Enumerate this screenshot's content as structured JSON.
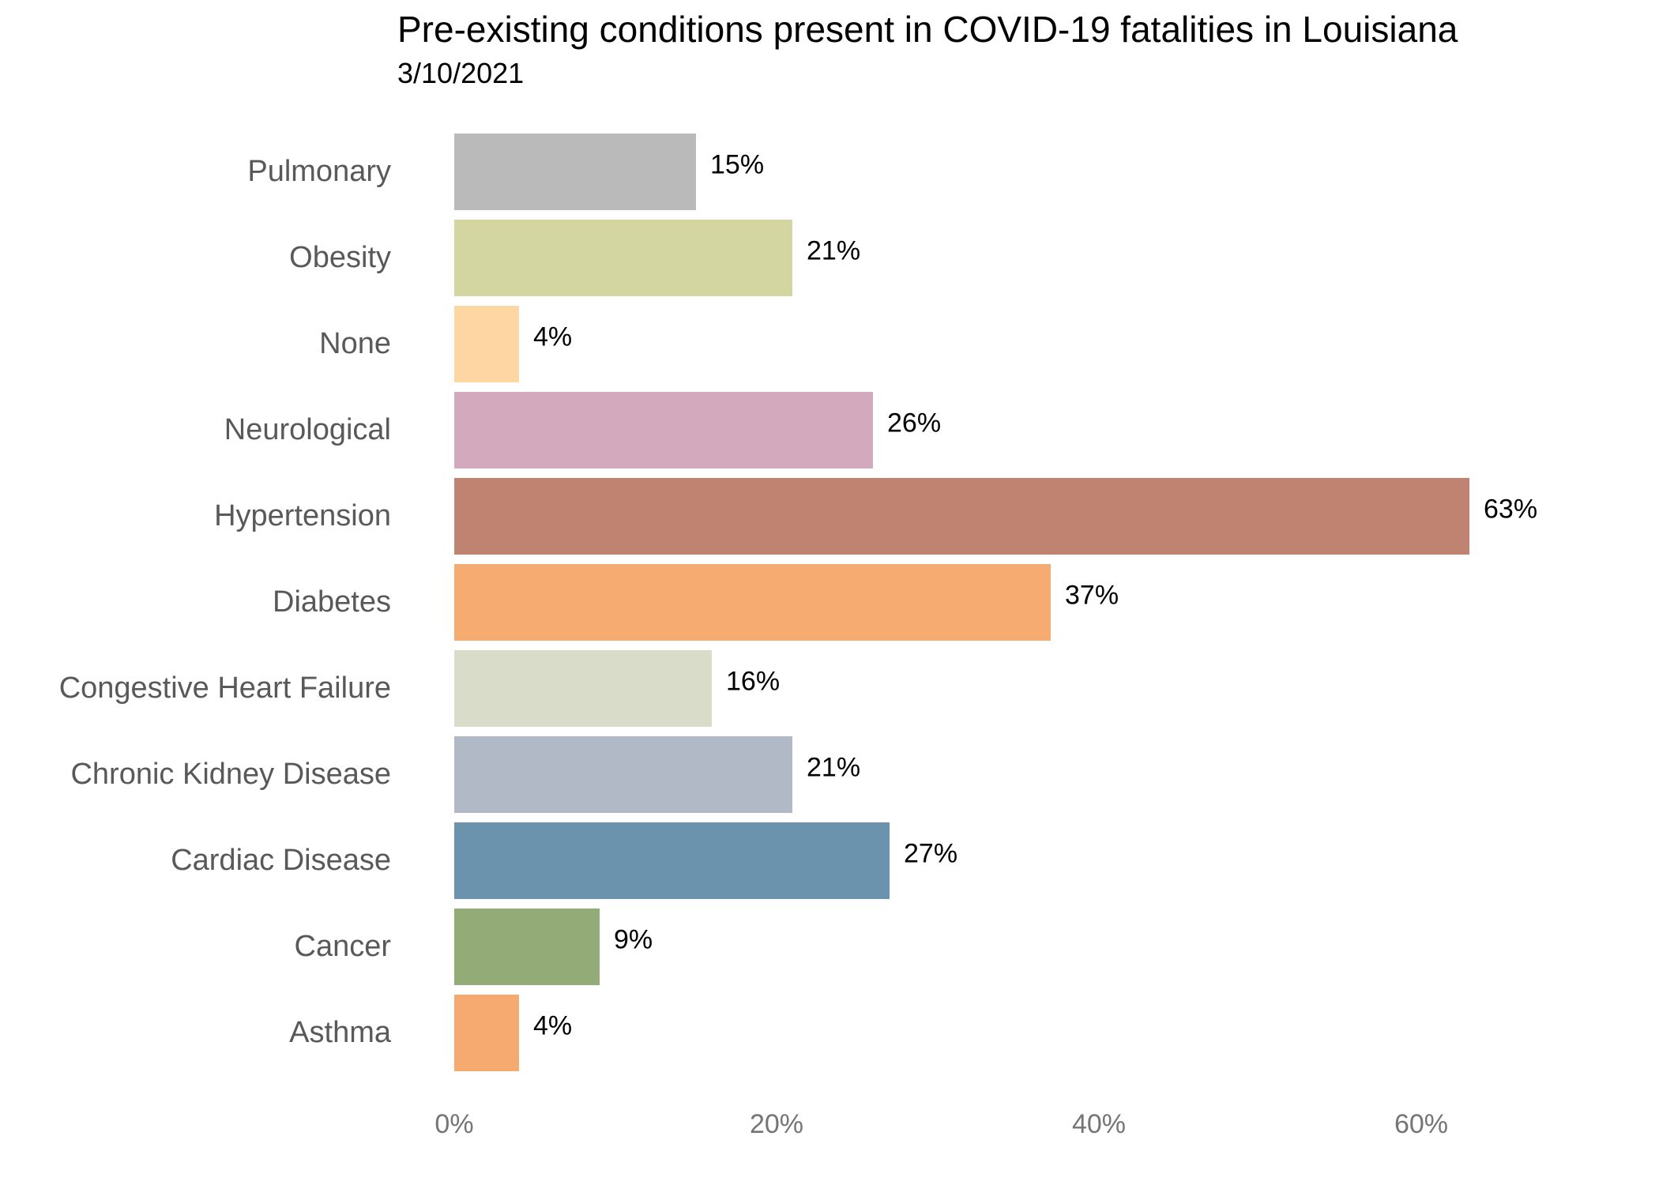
{
  "page": {
    "background_color": "#ffffff"
  },
  "chart_data": {
    "type": "bar",
    "orientation": "horizontal",
    "title": "Pre-existing conditions present in COVID-19 fatalities in Louisiana",
    "subtitle": "3/10/2021",
    "xlabel": "",
    "ylabel": "",
    "xlim": [
      0,
      70
    ],
    "grid": false,
    "legend": false,
    "categories": [
      "Pulmonary",
      "Obesity",
      "None",
      "Neurological",
      "Hypertension",
      "Diabetes",
      "Congestive Heart Failure",
      "Chronic Kidney Disease",
      "Cardiac Disease",
      "Cancer",
      "Asthma"
    ],
    "values": [
      15,
      21,
      4,
      26,
      63,
      37,
      16,
      21,
      27,
      9,
      4
    ],
    "value_labels": [
      "15%",
      "21%",
      "4%",
      "26%",
      "63%",
      "37%",
      "16%",
      "21%",
      "27%",
      "9%",
      "4%"
    ],
    "colors": [
      "#bababa",
      "#d3d6a1",
      "#fdd6a4",
      "#d2a9bd",
      "#c08372",
      "#f6ab71",
      "#d8dcc9",
      "#b2b9c6",
      "#6b93ae",
      "#93ac77",
      "#f6aa70"
    ],
    "x_ticks": [
      {
        "value": 0,
        "label": "0%"
      },
      {
        "value": 20,
        "label": "20%"
      },
      {
        "value": 40,
        "label": "40%"
      },
      {
        "value": 60,
        "label": "60%"
      }
    ],
    "text_colors": {
      "title": "#000000",
      "subtitle": "#000000",
      "category_labels": "#595959",
      "value_labels": "#000000",
      "axis_labels": "#757575"
    }
  }
}
